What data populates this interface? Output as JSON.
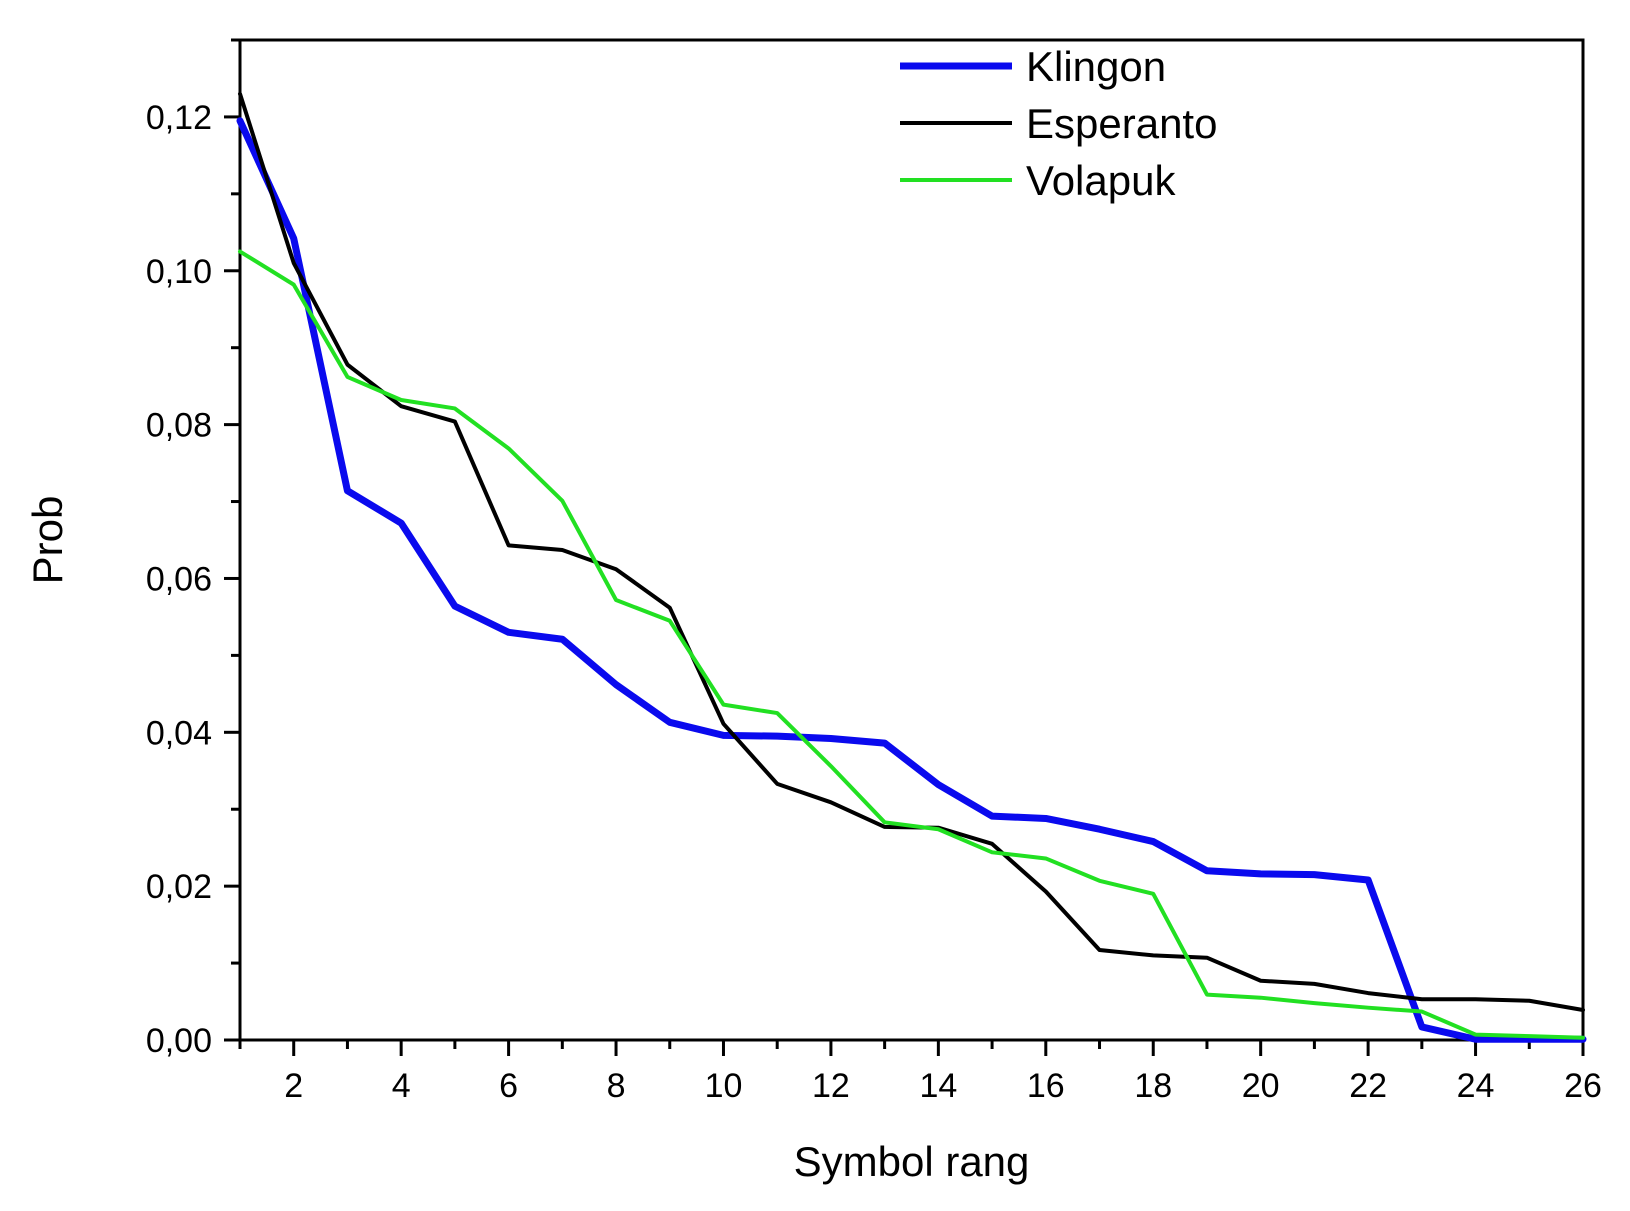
{
  "chart_data": {
    "type": "line",
    "title": "",
    "xlabel": "Symbol rang",
    "ylabel": "Prob",
    "xlim": [
      1,
      26
    ],
    "ylim": [
      0,
      0.13
    ],
    "x": [
      1,
      2,
      3,
      4,
      5,
      6,
      7,
      8,
      9,
      10,
      11,
      12,
      13,
      14,
      15,
      16,
      17,
      18,
      19,
      20,
      21,
      22,
      23,
      24,
      25,
      26
    ],
    "xticks": [
      2,
      4,
      6,
      8,
      10,
      12,
      14,
      16,
      18,
      20,
      22,
      24,
      26
    ],
    "xtick_labels": [
      "2",
      "4",
      "6",
      "8",
      "10",
      "12",
      "14",
      "16",
      "18",
      "20",
      "22",
      "24",
      "26"
    ],
    "yticks": [
      0,
      0.02,
      0.04,
      0.06,
      0.08,
      0.1,
      0.12
    ],
    "ytick_labels": [
      "0,00",
      "0,02",
      "0,04",
      "0,06",
      "0,08",
      "0,10",
      "0,12"
    ],
    "grid": false,
    "legend_position": "top-right",
    "series": [
      {
        "name": "Klingon",
        "color": "#0a0aee",
        "values": [
          0.1195,
          0.1042,
          0.0714,
          0.0672,
          0.0564,
          0.053,
          0.0521,
          0.0462,
          0.0413,
          0.0396,
          0.0395,
          0.0392,
          0.0386,
          0.0332,
          0.0291,
          0.0288,
          0.0274,
          0.0258,
          0.022,
          0.0216,
          0.0215,
          0.0208,
          0.0017,
          0.0001,
          0.0001,
          0.0001
        ]
      },
      {
        "name": "Esperanto",
        "color": "#000000",
        "values": [
          0.123,
          0.101,
          0.0878,
          0.0824,
          0.0804,
          0.0643,
          0.0637,
          0.0612,
          0.0562,
          0.0411,
          0.0333,
          0.0309,
          0.0277,
          0.0276,
          0.0255,
          0.0193,
          0.0117,
          0.011,
          0.0107,
          0.0077,
          0.0073,
          0.0061,
          0.0053,
          0.0053,
          0.0051,
          0.0039
        ]
      },
      {
        "name": "Volapuk",
        "color": "#22e022",
        "values": [
          0.1025,
          0.0982,
          0.0862,
          0.0832,
          0.0821,
          0.0769,
          0.0701,
          0.0572,
          0.0545,
          0.0436,
          0.0425,
          0.0356,
          0.0283,
          0.0274,
          0.0244,
          0.0236,
          0.0207,
          0.019,
          0.0059,
          0.0055,
          0.0048,
          0.0042,
          0.0037,
          0.0007,
          0.0005,
          0.0003
        ]
      }
    ]
  }
}
